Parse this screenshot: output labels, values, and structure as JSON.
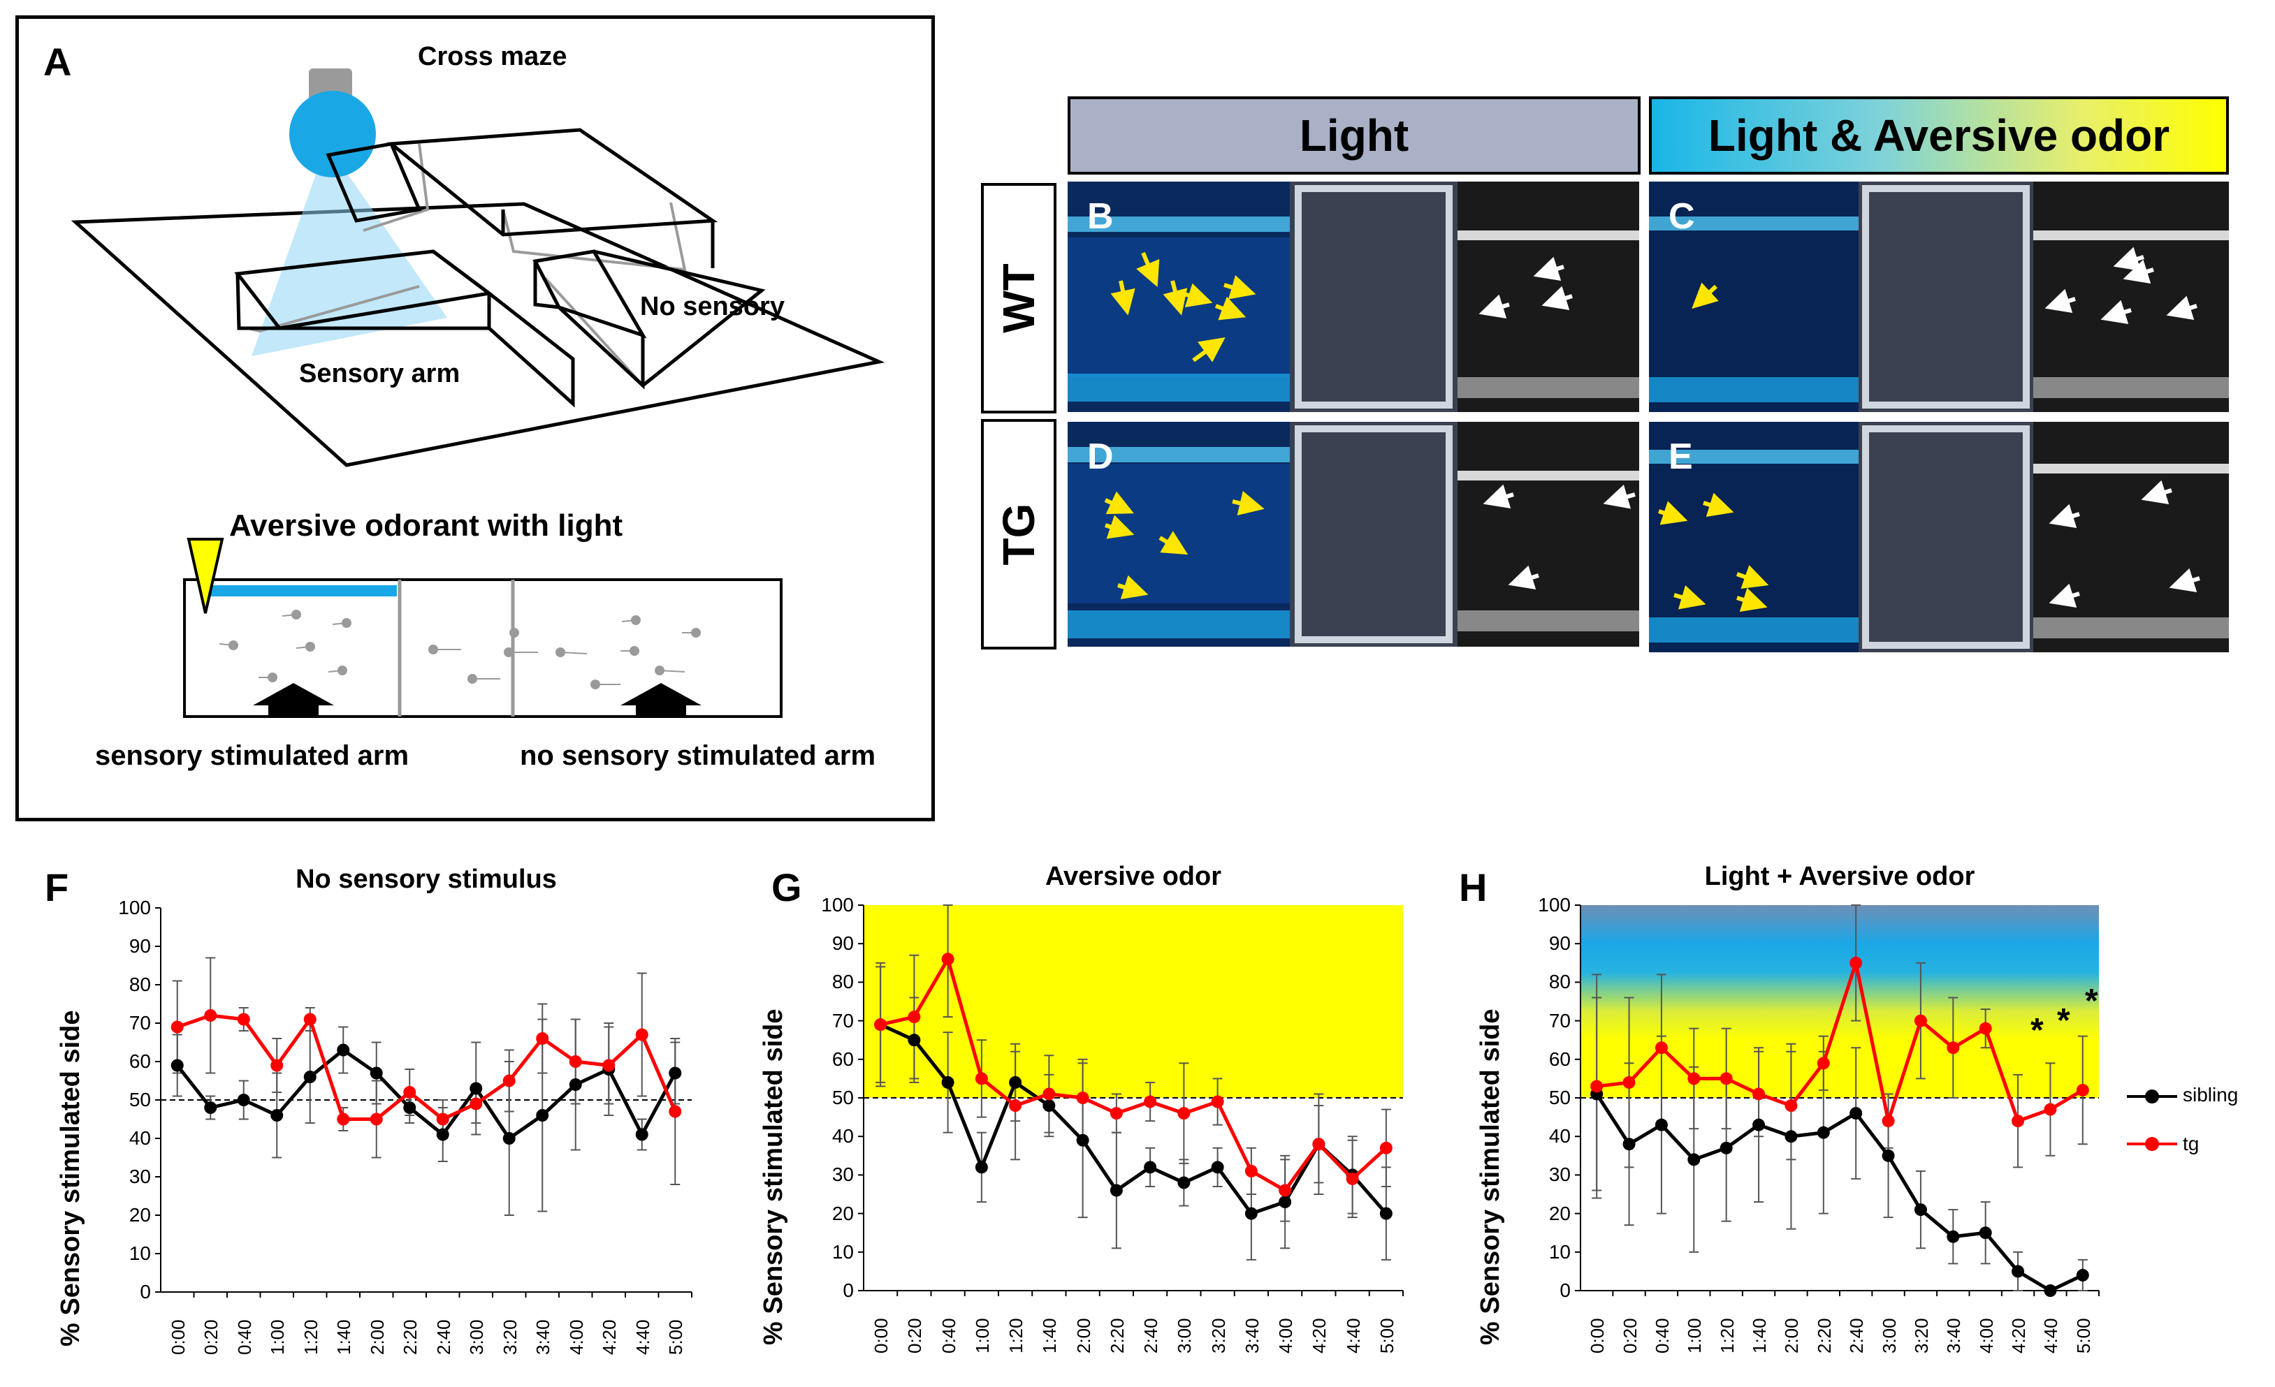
{
  "figure": {
    "panel_letters": {
      "A": "A",
      "B": "B",
      "C": "C",
      "D": "D",
      "E": "E",
      "F": "F",
      "G": "G",
      "H": "H"
    },
    "diagram": {
      "cross_maze": "Cross maze",
      "no_sensory": "No sensory",
      "sensory_arm": "Sensory arm",
      "aversive_label": "Aversive odorant with light",
      "stim_arm": "sensory stimulated arm",
      "no_stim_arm": "no sensory stimulated arm"
    },
    "photos": {
      "header_light": "Light",
      "header_light_odor": "Light & Aversive odor",
      "row_wt": "WT",
      "row_tg": "TG"
    },
    "colors": {
      "accent_blue": "#1aa7e6",
      "yellow": "#ffff00",
      "red": "#ff0000",
      "black": "#000000",
      "header_gray": "#aab0c6"
    }
  },
  "chart_data": [
    {
      "id": "F",
      "type": "line",
      "title": "No sensory stimulus",
      "ylabel": "% Sensory stimulated side",
      "ylim": [
        0,
        100
      ],
      "yticks": [
        "0",
        "10",
        "20",
        "30",
        "40",
        "50",
        "60",
        "70",
        "80",
        "90",
        "100"
      ],
      "categories": [
        "0:00",
        "0:20",
        "0:40",
        "1:00",
        "1:20",
        "1:40",
        "2:00",
        "2:20",
        "2:40",
        "3:00",
        "3:20",
        "3:40",
        "4:00",
        "4:20",
        "4:40",
        "5:00"
      ],
      "reference_line": 50,
      "background": "none",
      "series": [
        {
          "name": "sibling",
          "color": "#000000",
          "values": [
            59,
            48,
            50,
            46,
            56,
            63,
            57,
            48,
            41,
            53,
            40,
            46,
            54,
            58,
            41,
            57
          ],
          "errors": [
            8,
            3,
            5,
            11,
            12,
            6,
            8,
            4,
            7,
            12,
            20,
            25,
            17,
            12,
            4,
            8
          ]
        },
        {
          "name": "tg",
          "color": "#ff0000",
          "values": [
            69,
            72,
            71,
            59,
            71,
            45,
            45,
            52,
            45,
            49,
            55,
            66,
            60,
            59,
            67,
            47
          ],
          "errors": [
            12,
            15,
            3,
            7,
            3,
            3,
            10,
            6,
            5,
            5,
            8,
            9,
            11,
            10,
            16,
            19
          ]
        }
      ]
    },
    {
      "id": "G",
      "type": "line",
      "title": "Aversive odor",
      "ylabel": "% Sensory stimulated side",
      "ylim": [
        0,
        100
      ],
      "yticks": [
        "0",
        "10",
        "20",
        "30",
        "40",
        "50",
        "60",
        "70",
        "80",
        "90",
        "100"
      ],
      "categories": [
        "0:00",
        "0:20",
        "0:40",
        "1:00",
        "1:20",
        "1:40",
        "2:00",
        "2:20",
        "2:40",
        "3:00",
        "3:20",
        "3:40",
        "4:00",
        "4:20",
        "4:40",
        "5:00"
      ],
      "reference_line": 50,
      "background": "yellow",
      "series": [
        {
          "name": "sibling",
          "color": "#000000",
          "values": [
            69,
            65,
            54,
            32,
            54,
            48,
            39,
            26,
            32,
            28,
            32,
            20,
            23,
            38,
            30,
            20
          ],
          "errors": [
            15,
            11,
            13,
            9,
            10,
            8,
            20,
            15,
            5,
            6,
            5,
            12,
            12,
            13,
            10,
            12
          ]
        },
        {
          "name": "tg",
          "color": "#ff0000",
          "values": [
            69,
            71,
            86,
            55,
            48,
            51,
            50,
            46,
            49,
            46,
            49,
            31,
            26,
            38,
            29,
            37
          ],
          "errors": [
            16,
            16,
            15,
            10,
            14,
            10,
            10,
            5,
            5,
            13,
            6,
            6,
            8,
            10,
            10,
            10
          ]
        }
      ]
    },
    {
      "id": "H",
      "type": "line",
      "title": "Light + Aversive odor",
      "ylabel": "% Sensory stimulated side",
      "ylim": [
        0,
        100
      ],
      "yticks": [
        "0",
        "10",
        "20",
        "30",
        "40",
        "50",
        "60",
        "70",
        "80",
        "90",
        "100"
      ],
      "categories": [
        "0:00",
        "0:20",
        "0:40",
        "1:00",
        "1:20",
        "1:40",
        "2:00",
        "2:20",
        "2:40",
        "3:00",
        "3:20",
        "3:40",
        "4:00",
        "4:20",
        "4:40",
        "5:00"
      ],
      "reference_line": 50,
      "background": "blue-to-yellow gradient",
      "legend": [
        "sibling",
        "tg"
      ],
      "significance_marks": [
        "*",
        "*",
        "*"
      ],
      "series": [
        {
          "name": "sibling",
          "color": "#000000",
          "values": [
            51,
            38,
            43,
            34,
            37,
            43,
            40,
            41,
            46,
            35,
            21,
            14,
            15,
            5,
            0,
            4
          ],
          "errors": [
            25,
            21,
            23,
            24,
            19,
            20,
            24,
            21,
            17,
            16,
            10,
            7,
            8,
            5,
            1,
            4
          ]
        },
        {
          "name": "tg",
          "color": "#ff0000",
          "values": [
            53,
            54,
            63,
            55,
            55,
            51,
            48,
            59,
            85,
            44,
            70,
            63,
            68,
            44,
            47,
            52
          ],
          "errors": [
            29,
            22,
            19,
            13,
            13,
            11,
            14,
            7,
            15,
            7,
            15,
            13,
            5,
            12,
            12,
            14
          ]
        }
      ]
    }
  ]
}
